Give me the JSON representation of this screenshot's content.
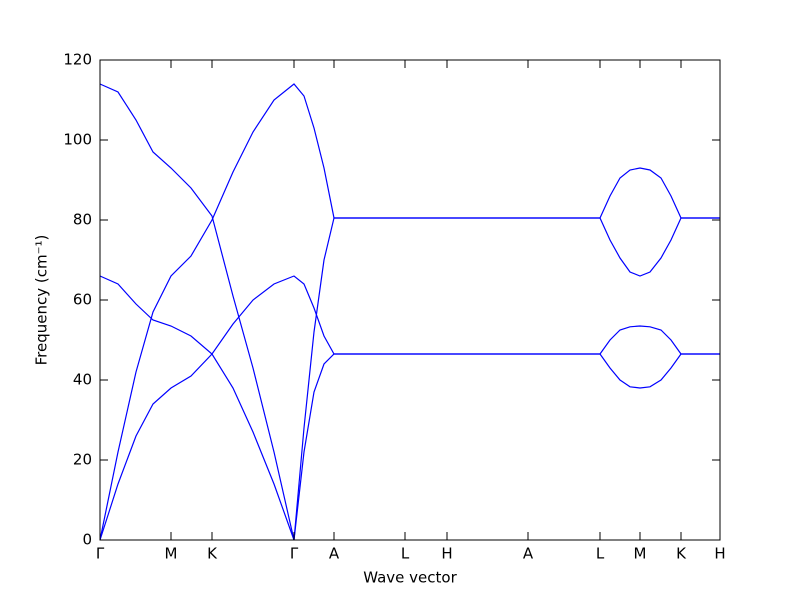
{
  "chart_data": {
    "type": "line",
    "xlabel": "Wave vector",
    "ylabel": "Frequency (cm⁻¹)",
    "xlim": [
      0,
      6.2
    ],
    "ylim": [
      0,
      120
    ],
    "yticks": [
      0,
      20,
      40,
      60,
      80,
      100,
      120
    ],
    "xticks": [
      {
        "value": 0,
        "label": "Γ"
      },
      {
        "value": 0.71,
        "label": "M"
      },
      {
        "value": 1.12,
        "label": "K"
      },
      {
        "value": 1.94,
        "label": "Γ"
      },
      {
        "value": 2.34,
        "label": "A"
      },
      {
        "value": 3.05,
        "label": "L"
      },
      {
        "value": 3.47,
        "label": "H"
      },
      {
        "value": 4.28,
        "label": "A"
      },
      {
        "value": 5.0,
        "label": "L"
      },
      {
        "value": 5.4,
        "label": "M"
      },
      {
        "value": 5.81,
        "label": "K"
      },
      {
        "value": 6.2,
        "label": "H"
      }
    ],
    "x": [
      0,
      0.18,
      0.36,
      0.53,
      0.71,
      0.91,
      1.12,
      1.33,
      1.53,
      1.74,
      1.94,
      2.04,
      2.14,
      2.24,
      2.34,
      3.05,
      3.47,
      4.28,
      5.0,
      5.1,
      5.2,
      5.3,
      5.4,
      5.5,
      5.61,
      5.71,
      5.81,
      6.2
    ],
    "series": [
      {
        "color": "#0000ff",
        "values": [
          114,
          112,
          105,
          97,
          93,
          88,
          81,
          61,
          43,
          22,
          0,
          28,
          52,
          70,
          80.5,
          80.5,
          80.5,
          80.5,
          80.5,
          86,
          90.5,
          92.5,
          93,
          92.5,
          90.5,
          86,
          80.5,
          80.5
        ]
      },
      {
        "color": "#0000ff",
        "values": [
          0,
          22,
          42,
          57,
          66,
          71,
          80,
          92,
          102,
          110,
          114,
          111,
          103,
          93,
          80.5,
          80.5,
          80.5,
          80.5,
          80.5,
          75,
          70.5,
          67,
          66,
          67,
          70.5,
          75,
          80.5,
          80.5
        ]
      },
      {
        "color": "#0000ff",
        "values": [
          66,
          64,
          59,
          55,
          53.5,
          51,
          46.5,
          38,
          27,
          14,
          0,
          22,
          37,
          44,
          46.5,
          46.5,
          46.5,
          46.5,
          46.5,
          50,
          52.5,
          53.3,
          53.5,
          53.3,
          52.5,
          50,
          46.5,
          46.5
        ]
      },
      {
        "color": "#0000ff",
        "values": [
          0,
          14,
          26,
          34,
          38,
          41,
          46.5,
          54,
          60,
          64,
          66,
          64,
          58,
          51,
          46.5,
          46.5,
          46.5,
          46.5,
          46.5,
          43,
          40,
          38.3,
          38,
          38.3,
          40,
          43,
          46.5,
          46.5
        ]
      }
    ]
  }
}
